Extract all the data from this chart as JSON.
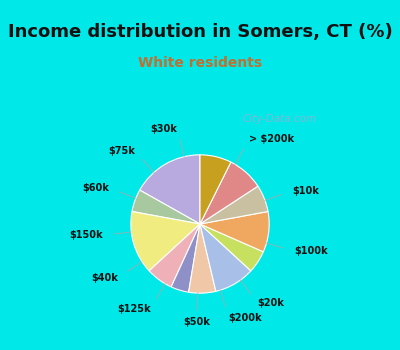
{
  "title": "Income distribution in Somers, CT (%)",
  "subtitle": "White residents",
  "labels": [
    "> $200k",
    "$10k",
    "$100k",
    "$20k",
    "$200k",
    "$50k",
    "$125k",
    "$40k",
    "$150k",
    "$60k",
    "$75k",
    "$30k"
  ],
  "values": [
    16,
    5,
    14,
    6,
    4,
    6,
    9,
    5,
    9,
    6,
    8,
    7
  ],
  "colors": [
    "#b8aade",
    "#a8c8a0",
    "#f0ec80",
    "#f0b0b8",
    "#9090c8",
    "#f0c8a8",
    "#a8c0e8",
    "#c8e060",
    "#f0a860",
    "#c8c0a0",
    "#e08888",
    "#c8a020"
  ],
  "bg_color": "#00e8e8",
  "chart_bg_color": "#d8efe8",
  "title_color": "#111111",
  "subtitle_color": "#c07030",
  "label_color": "#111111",
  "line_color": "#aaaaaa",
  "watermark_text": "City-Data.com",
  "watermark_color": "#aaaacc",
  "startangle": 90
}
